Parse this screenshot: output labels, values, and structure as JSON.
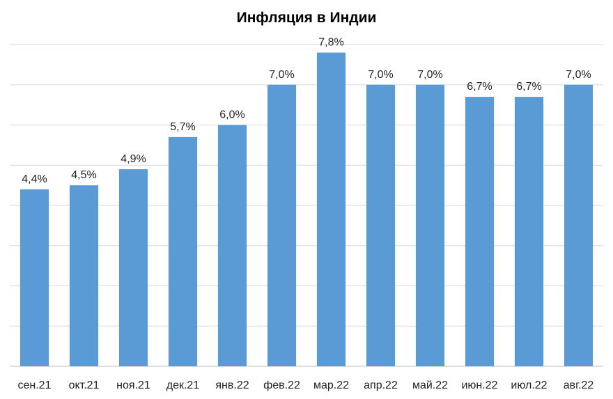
{
  "chart_data": {
    "type": "bar",
    "title": "Инфляция в Индии",
    "categories": [
      "сен.21",
      "окт.21",
      "ноя.21",
      "дек.21",
      "янв.22",
      "фев.22",
      "мар.22",
      "апр.22",
      "май.22",
      "июн.22",
      "июл.22",
      "авг.22"
    ],
    "values": [
      4.4,
      4.5,
      4.9,
      5.7,
      6.0,
      7.0,
      7.8,
      7.0,
      7.0,
      6.7,
      6.7,
      7.0
    ],
    "data_labels": [
      "4,4%",
      "4,5%",
      "4,9%",
      "5,7%",
      "6,0%",
      "7,0%",
      "7,8%",
      "7,0%",
      "7,0%",
      "6,7%",
      "6,7%",
      "7,0%"
    ],
    "xlabel": "",
    "ylabel": "",
    "ylim": [
      0,
      8
    ],
    "y_grid_step": 1,
    "grid": true,
    "legend": "none",
    "bar_color": "#5b9bd5",
    "grid_color": "#d9d9d9"
  }
}
